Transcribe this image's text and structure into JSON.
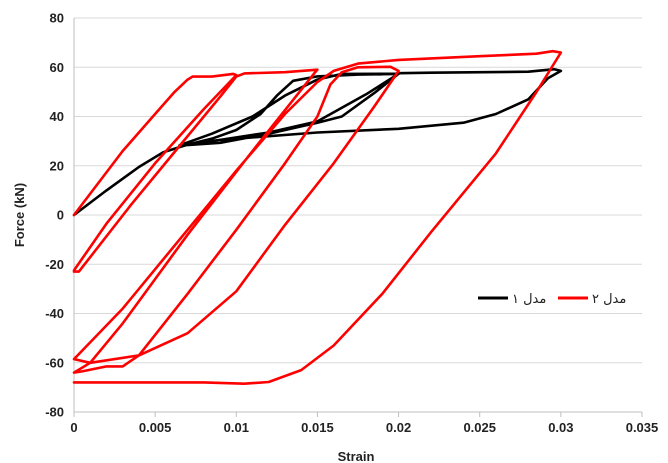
{
  "chart_data": {
    "type": "line",
    "xlabel": "Strain",
    "ylabel": "Force (kN)",
    "xlim": [
      0,
      0.035
    ],
    "ylim": [
      -80,
      80
    ],
    "x_ticks": [
      0,
      0.005,
      0.01,
      0.015,
      0.02,
      0.025,
      0.03,
      0.035
    ],
    "x_tick_labels": [
      "0",
      "0.005",
      "0.01",
      "0.015",
      "0.02",
      "0.025",
      "0.03",
      "0.035"
    ],
    "y_ticks": [
      -80,
      -60,
      -40,
      -20,
      0,
      20,
      40,
      60,
      80
    ],
    "y_tick_labels": [
      "-80",
      "-60",
      "-40",
      "-20",
      "0",
      "20",
      "40",
      "60",
      "80"
    ],
    "grid": "horizontal",
    "legend_position": "right",
    "series": [
      {
        "name": "مدل ۱",
        "color": "#000000",
        "points": [
          [
            0,
            0
          ],
          [
            0.002,
            10
          ],
          [
            0.004,
            19.5
          ],
          [
            0.0055,
            25.5
          ],
          [
            0.007,
            28.6
          ],
          [
            0.0085,
            31
          ],
          [
            0.01,
            34.5
          ],
          [
            0.0115,
            41
          ],
          [
            0.0125,
            48.5
          ],
          [
            0.0135,
            54.5
          ],
          [
            0.015,
            56.3
          ],
          [
            0.0175,
            57
          ],
          [
            0.02,
            57.3
          ],
          [
            0.0198,
            56.5
          ],
          [
            0.018,
            49
          ],
          [
            0.015,
            38
          ],
          [
            0.012,
            33.5
          ],
          [
            0.009,
            30.5
          ],
          [
            0.0065,
            28.3
          ],
          [
            0.0085,
            33
          ],
          [
            0.011,
            40
          ],
          [
            0.013,
            48.5
          ],
          [
            0.015,
            55
          ],
          [
            0.0165,
            57.3
          ],
          [
            0.02,
            57.4
          ],
          [
            0.0199,
            56.8
          ],
          [
            0.0185,
            49.5
          ],
          [
            0.0165,
            40
          ],
          [
            0.015,
            37.5
          ],
          [
            0.012,
            33
          ],
          [
            0.009,
            29.3
          ],
          [
            0.0065,
            28.2
          ],
          [
            0.009,
            30.5
          ],
          [
            0.015,
            33.5
          ],
          [
            0.02,
            35
          ],
          [
            0.024,
            37.5
          ],
          [
            0.026,
            41
          ],
          [
            0.028,
            47
          ],
          [
            0.0292,
            55.5
          ],
          [
            0.03,
            58.5
          ],
          [
            0.0296,
            59.2
          ],
          [
            0.028,
            58.2
          ],
          [
            0.022,
            57.8
          ],
          [
            0.02,
            57.6
          ]
        ]
      },
      {
        "name": "مدل ۲",
        "color": "#ff0000",
        "points": [
          [
            0,
            0
          ],
          [
            0.003,
            26
          ],
          [
            0.005,
            41
          ],
          [
            0.0062,
            50
          ],
          [
            0.007,
            55
          ],
          [
            0.0073,
            56.2
          ],
          [
            0.0085,
            56.2
          ],
          [
            0.0098,
            57.3
          ],
          [
            0.01,
            56.8
          ],
          [
            0.008,
            43
          ],
          [
            0.005,
            21
          ],
          [
            0.002,
            -3.5
          ],
          [
            0,
            -22.5
          ],
          [
            0,
            -23
          ],
          [
            0.0003,
            -23
          ],
          [
            0.0035,
            4
          ],
          [
            0.0065,
            28
          ],
          [
            0.009,
            48
          ],
          [
            0.01,
            56.2
          ],
          [
            0.0105,
            57.5
          ],
          [
            0.013,
            58
          ],
          [
            0.015,
            59
          ],
          [
            0.0148,
            57.5
          ],
          [
            0.011,
            26
          ],
          [
            0.007,
            -8
          ],
          [
            0.003,
            -44
          ],
          [
            0.001,
            -60
          ],
          [
            0,
            -64
          ],
          [
            0.0005,
            -63.5
          ],
          [
            0.002,
            -61.5
          ],
          [
            0.003,
            -61.5
          ],
          [
            0.004,
            -57
          ],
          [
            0.007,
            -32
          ],
          [
            0.01,
            -6
          ],
          [
            0.013,
            21
          ],
          [
            0.015,
            40
          ],
          [
            0.0158,
            53
          ],
          [
            0.0165,
            58
          ],
          [
            0.0175,
            60
          ],
          [
            0.0195,
            60.2
          ],
          [
            0.02,
            58.5
          ],
          [
            0.0185,
            44
          ],
          [
            0.016,
            21
          ],
          [
            0.013,
            -4
          ],
          [
            0.01,
            -31
          ],
          [
            0.007,
            -48
          ],
          [
            0.004,
            -57
          ],
          [
            0.001,
            -60
          ],
          [
            0,
            -58.5
          ],
          [
            0.003,
            -38
          ],
          [
            0.007,
            -6
          ],
          [
            0.01,
            18
          ],
          [
            0.013,
            41
          ],
          [
            0.015,
            54
          ],
          [
            0.016,
            58.5
          ],
          [
            0.0175,
            61.5
          ],
          [
            0.02,
            63
          ],
          [
            0.025,
            64.5
          ],
          [
            0.0285,
            65.5
          ],
          [
            0.0295,
            66.5
          ],
          [
            0.03,
            66
          ],
          [
            0.0285,
            50
          ],
          [
            0.026,
            25
          ],
          [
            0.022,
            -7
          ],
          [
            0.019,
            -32
          ],
          [
            0.016,
            -53
          ],
          [
            0.014,
            -63
          ],
          [
            0.012,
            -67.8
          ],
          [
            0.0105,
            -68.5
          ],
          [
            0.008,
            -68
          ],
          [
            0.004,
            -68
          ],
          [
            0,
            -68
          ]
        ]
      }
    ]
  }
}
